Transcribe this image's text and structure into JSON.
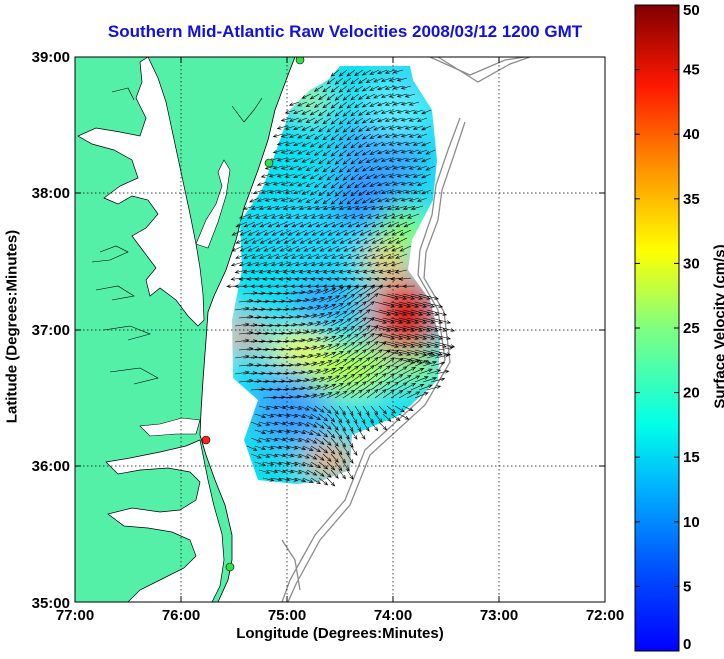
{
  "title": "Southern Mid-Atlantic Raw Velocities 2008/03/12 1200 GMT",
  "x_axis": {
    "label": "Longitude (Degrees:Minutes)",
    "ticks": [
      "77:00",
      "76:00",
      "75:00",
      "74:00",
      "73:00",
      "72:00"
    ]
  },
  "y_axis": {
    "label": "Latitude (Degrees:Minutes)",
    "ticks": [
      "39:00",
      "38:00",
      "37:00",
      "36:00",
      "35:00"
    ]
  },
  "colorbar": {
    "label": "Surface Velocity (cm/s)",
    "ticks": [
      "0",
      "5",
      "10",
      "15",
      "20",
      "25",
      "30",
      "35",
      "40",
      "45",
      "50"
    ],
    "min": 0,
    "max": 50,
    "colormap": "jet"
  },
  "colors": {
    "land": "#55f0a8",
    "water": "#ffffff",
    "title": "#1010e0",
    "station_on": "#33e04a",
    "station_off": "#ff2020"
  }
}
